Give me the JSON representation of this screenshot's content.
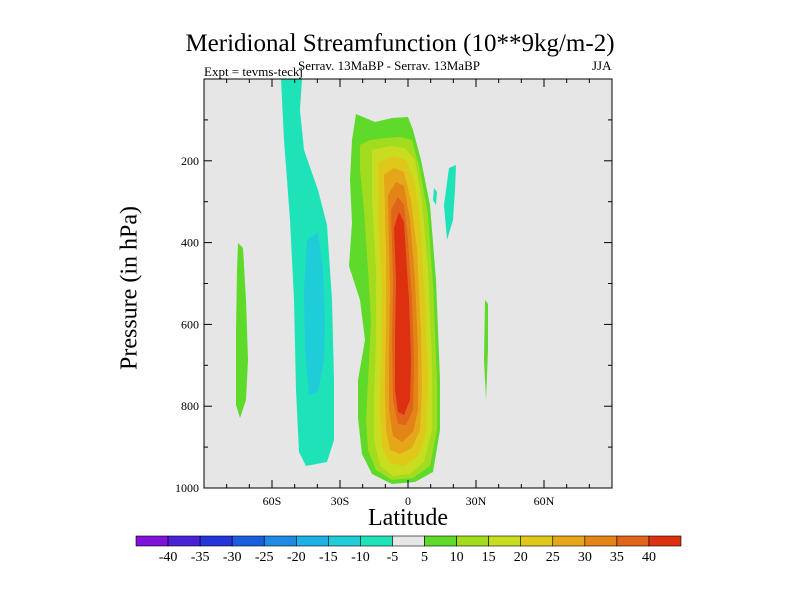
{
  "chart_data": {
    "type": "heatmap",
    "title": "Meridional Streamfunction (10**9kg/m-2)",
    "subtitle_left": "Expt = tevms-teckj",
    "subtitle_center": "Serrav.   13MaBP - Serrav.   13MaBP",
    "subtitle_right": "JJA",
    "xlabel": "Latitude",
    "ylabel": "Pressure (in hPa)",
    "xlim": [
      -90,
      90
    ],
    "ylim": [
      0,
      1000
    ],
    "x_ticks": [
      {
        "value": -60,
        "label": "60S"
      },
      {
        "value": -30,
        "label": "30S"
      },
      {
        "value": 0,
        "label": "0"
      },
      {
        "value": 30,
        "label": "30N"
      },
      {
        "value": 60,
        "label": "60N"
      }
    ],
    "y_ticks": [
      {
        "value": 200,
        "label": "200"
      },
      {
        "value": 400,
        "label": "400"
      },
      {
        "value": 600,
        "label": "600"
      },
      {
        "value": 800,
        "label": "800"
      },
      {
        "value": 1000,
        "label": "1000"
      }
    ],
    "colorbar": {
      "labels": [
        "-40",
        "-35",
        "-30",
        "-25",
        "-20",
        "-15",
        "-10",
        "-5",
        "5",
        "10",
        "15",
        "20",
        "25",
        "30",
        "35",
        "40"
      ],
      "colors": [
        "#7f12d9",
        "#4a22d6",
        "#2436d9",
        "#1a5ee0",
        "#1e8ae3",
        "#1fb0e6",
        "#1fcdd9",
        "#1fe3b8",
        "#e6e6e6",
        "#5fd92a",
        "#a2dc1e",
        "#c8dc20",
        "#e0c81a",
        "#e5a619",
        "#e38516",
        "#e0651a",
        "#dd3010"
      ]
    },
    "features": [
      {
        "name": "Southern mid-latitude negative cell",
        "sign": "negative",
        "lat_range": [
          -55,
          -30
        ],
        "pressure_range": [
          0,
          950
        ],
        "min_contour": -15
      },
      {
        "name": "Southern high-latitude positive band",
        "sign": "positive",
        "lat_range": [
          -74,
          -70
        ],
        "pressure_range": [
          400,
          800
        ],
        "max_contour": 10
      },
      {
        "name": "Tropical positive (Hadley) cell",
        "sign": "positive",
        "lat_range": [
          -25,
          12
        ],
        "pressure_range": [
          80,
          980
        ],
        "max_contour": 45
      },
      {
        "name": "Northern subtropical negative patch",
        "sign": "negative",
        "lat_range": [
          12,
          22
        ],
        "pressure_range": [
          200,
          400
        ],
        "min_contour": -5
      },
      {
        "name": "Northern positive sliver",
        "sign": "positive",
        "lat_range": [
          32,
          34
        ],
        "pressure_range": [
          540,
          790
        ],
        "max_contour": 10
      }
    ]
  }
}
